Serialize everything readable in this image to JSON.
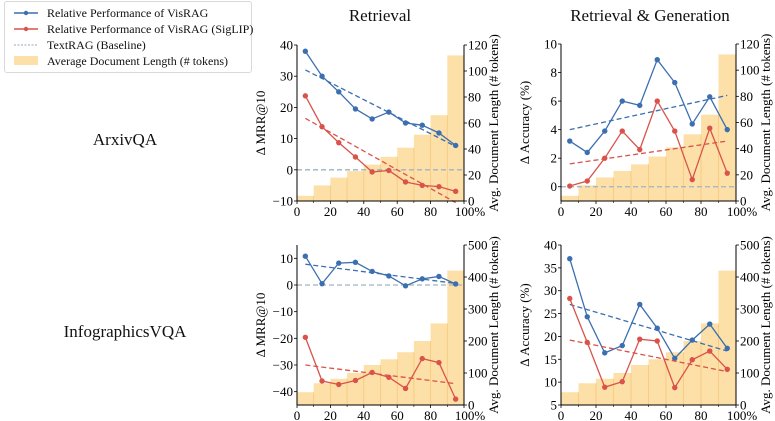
{
  "legend": {
    "items": [
      {
        "label": "Relative Performance of VisRAG",
        "type": "line-marker",
        "color": "#3b6fb0"
      },
      {
        "label": "Relative Performance of VisRAG (SigLIP)",
        "type": "line-marker",
        "color": "#d9534a"
      },
      {
        "label": "TextRAG (Baseline)",
        "type": "dashed",
        "color": "#8fa8bf"
      },
      {
        "label": "Average Document Length (# tokens)",
        "type": "patch",
        "color": "#fde0a8"
      }
    ]
  },
  "columns": [
    "Retrieval",
    "Retrieval & Generation"
  ],
  "rows": [
    "ArxivQA",
    "InfographicsVQA"
  ],
  "colors": {
    "visrag": "#3b6fb0",
    "siglip": "#d9534a",
    "baseline": "#9fb3c4",
    "bars": "#fde0a8",
    "bar_edge": "#f7c77a"
  },
  "chart_data": [
    {
      "type": "line",
      "title": "Retrieval",
      "row": "ArxivQA",
      "xlabel": "",
      "ylabel": "Δ MRR@10",
      "ylabel2": "Avg. Document Length (# tokens)",
      "x": [
        5,
        15,
        25,
        35,
        45,
        55,
        65,
        75,
        85,
        95
      ],
      "xlim": [
        0,
        100
      ],
      "xticks": [
        0,
        20,
        40,
        60,
        80,
        100
      ],
      "xticklabels": [
        "0",
        "20",
        "40",
        "60",
        "80",
        "100%"
      ],
      "ylim": [
        -10,
        40
      ],
      "yticks": [
        -10,
        0,
        10,
        20,
        30,
        40
      ],
      "yticklabels": [
        "−10",
        "0",
        "10",
        "20",
        "30",
        "40"
      ],
      "y2lim": [
        0,
        120
      ],
      "y2ticks": [
        0,
        20,
        40,
        60,
        80,
        100,
        120
      ],
      "series": [
        {
          "name": "Relative Performance of VisRAG",
          "values": [
            38,
            30,
            25,
            19.5,
            16.3,
            18.5,
            15,
            14.3,
            11.8,
            7.8
          ],
          "trend": [
            32,
            7.5
          ]
        },
        {
          "name": "Relative Performance of VisRAG (SigLIP)",
          "values": [
            23.7,
            13.8,
            8.7,
            4.1,
            -0.7,
            -0.2,
            -3.9,
            -5,
            -5.4,
            -6.9
          ],
          "trend": [
            16.5,
            -10.5
          ]
        }
      ],
      "baseline": 0,
      "bars": {
        "name": "Average Document Length (# tokens)",
        "values": [
          4,
          12,
          18,
          23,
          28,
          34,
          41,
          51,
          66,
          112
        ]
      }
    },
    {
      "type": "line",
      "title": "Retrieval & Generation",
      "row": "ArxivQA",
      "xlabel": "",
      "ylabel": "Δ Accuracy (%)",
      "ylabel2": "Avg. Document Length (# tokens)",
      "x": [
        5,
        15,
        25,
        35,
        45,
        55,
        65,
        75,
        85,
        95
      ],
      "xlim": [
        0,
        100
      ],
      "xticks": [
        0,
        20,
        40,
        60,
        80,
        100
      ],
      "xticklabels": [
        "0",
        "20",
        "40",
        "60",
        "80",
        "100%"
      ],
      "ylim": [
        -1,
        10
      ],
      "yticks": [
        0,
        2,
        4,
        6,
        8,
        10
      ],
      "yticklabels": [
        "0",
        "2",
        "4",
        "6",
        "8",
        "10"
      ],
      "y2lim": [
        0,
        120
      ],
      "y2ticks": [
        0,
        20,
        40,
        60,
        80,
        100,
        120
      ],
      "series": [
        {
          "name": "Relative Performance of VisRAG",
          "values": [
            3.2,
            2.4,
            3.9,
            6.0,
            5.7,
            8.9,
            7.3,
            4.4,
            6.3,
            4.0
          ],
          "trend": [
            4.0,
            6.4
          ]
        },
        {
          "name": "Relative Performance of VisRAG (SigLIP)",
          "values": [
            0.05,
            0.4,
            2.0,
            3.9,
            2.6,
            6.0,
            3.9,
            0.5,
            4.1,
            0.95
          ],
          "trend": [
            1.6,
            3.2
          ]
        }
      ],
      "baseline": 0,
      "bars": {
        "name": "Average Document Length (# tokens)",
        "values": [
          4,
          12,
          18,
          23,
          28,
          34,
          41,
          51,
          66,
          112
        ]
      }
    },
    {
      "type": "line",
      "title": "Retrieval",
      "row": "InfographicsVQA",
      "xlabel": "",
      "ylabel": "Δ MRR@10",
      "ylabel2": "Avg. Document Length (# tokens)",
      "x": [
        5,
        15,
        25,
        35,
        45,
        55,
        65,
        75,
        85,
        95
      ],
      "xlim": [
        0,
        100
      ],
      "xticks": [
        0,
        20,
        40,
        60,
        80,
        100
      ],
      "xticklabels": [
        "0",
        "20",
        "40",
        "60",
        "80",
        "100%"
      ],
      "ylim": [
        -45,
        15
      ],
      "yticks": [
        -40,
        -30,
        -20,
        -10,
        0,
        10
      ],
      "yticklabels": [
        "−40",
        "−30",
        "−20",
        "−10",
        "0",
        "10"
      ],
      "y2lim": [
        0,
        500
      ],
      "y2ticks": [
        0,
        100,
        200,
        300,
        400,
        500
      ],
      "series": [
        {
          "name": "Relative Performance of VisRAG",
          "values": [
            10.8,
            0.5,
            8.2,
            8.5,
            5.1,
            3.4,
            -0.3,
            2.3,
            3.2,
            0.4
          ],
          "trend": [
            7.8,
            0.6
          ]
        },
        {
          "name": "Relative Performance of VisRAG (SigLIP)",
          "values": [
            -19.6,
            -36,
            -37.3,
            -35.8,
            -32.8,
            -34.6,
            -38.8,
            -27.6,
            -29.1,
            -42.8
          ],
          "trend": [
            -30,
            -37
          ]
        }
      ],
      "baseline": 0,
      "bars": {
        "name": "Average Document Length (# tokens)",
        "values": [
          40,
          68,
          82,
          100,
          125,
          143,
          165,
          200,
          255,
          420
        ]
      }
    },
    {
      "type": "line",
      "title": "Retrieval & Generation",
      "row": "InfographicsVQA",
      "xlabel": "",
      "ylabel": "Δ Accuracy (%)",
      "ylabel2": "Avg. Document Length (# tokens)",
      "x": [
        5,
        15,
        25,
        35,
        45,
        55,
        65,
        75,
        85,
        95
      ],
      "xlim": [
        0,
        100
      ],
      "xticks": [
        0,
        20,
        40,
        60,
        80,
        100
      ],
      "xticklabels": [
        "0",
        "20",
        "40",
        "60",
        "80",
        "100%"
      ],
      "ylim": [
        5,
        40
      ],
      "yticks": [
        5,
        10,
        15,
        20,
        25,
        30,
        35,
        40
      ],
      "yticklabels": [
        "5",
        "10",
        "15",
        "20",
        "25",
        "30",
        "35",
        "40"
      ],
      "y2lim": [
        0,
        500
      ],
      "y2ticks": [
        0,
        100,
        200,
        300,
        400,
        500
      ],
      "series": [
        {
          "name": "Relative Performance of VisRAG",
          "values": [
            37,
            24.3,
            16.4,
            18,
            27,
            21.8,
            15.2,
            19.2,
            22.7,
            17.4
          ],
          "trend": [
            27,
            16.8
          ]
        },
        {
          "name": "Relative Performance of VisRAG (SigLIP)",
          "values": [
            28.3,
            18.7,
            8.9,
            10.1,
            19.4,
            19,
            8.8,
            14.9,
            16.8,
            12.8
          ],
          "trend": [
            19.2,
            12.3
          ]
        }
      ],
      "baseline": null,
      "bars": {
        "name": "Average Document Length (# tokens)",
        "values": [
          40,
          68,
          82,
          100,
          125,
          143,
          165,
          200,
          255,
          420
        ]
      }
    }
  ]
}
